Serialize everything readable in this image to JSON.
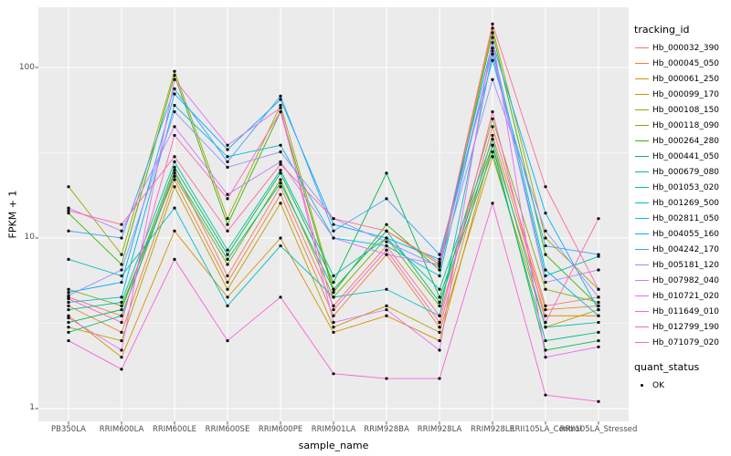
{
  "chart_data": {
    "type": "line",
    "title": "",
    "xlabel": "sample_name",
    "ylabel": "FPKM + 1",
    "y_scale": "log10",
    "y_ticks": [
      1,
      10,
      100
    ],
    "y_tick_labels": [
      "1",
      "10",
      "100"
    ],
    "ylim_log": [
      -0.075,
      2.353
    ],
    "grid": true,
    "legend_position": "right",
    "legend_title": "tracking_id",
    "quant_legend": {
      "title": "quant_status",
      "items": [
        {
          "label": "OK",
          "marker": "point"
        }
      ]
    },
    "panel_bg": "#EBEBEB",
    "grid_color": "#FFFFFF",
    "point_color": "#000000",
    "axis_text_color": "#4D4D4D",
    "categories": [
      "PB350LA",
      "RRIM600LA",
      "RRIM600LE",
      "RRIM600SE",
      "RRIM600PE",
      "RRIM901LA",
      "RRIM928BA",
      "RRIM928LA",
      "RRIM928LE",
      "RRII105LA_Control",
      "RRII105LA_Stressed"
    ],
    "series": [
      {
        "name": "Hb_000032_390",
        "color": "#F8766D",
        "values": [
          4.5,
          3.5,
          25,
          6.0,
          20,
          4.0,
          9.0,
          3.5,
          45,
          4.0,
          4.5
        ]
      },
      {
        "name": "Hb_000045_050",
        "color": "#EA8331",
        "values": [
          4.0,
          2.8,
          22,
          5.5,
          18,
          3.5,
          8.0,
          3.0,
          40,
          3.8,
          4.0
        ]
      },
      {
        "name": "Hb_000061_250",
        "color": "#D89000",
        "values": [
          3.5,
          2.0,
          11,
          4.5,
          10,
          2.8,
          3.5,
          2.5,
          35,
          3.5,
          3.5
        ]
      },
      {
        "name": "Hb_000099_170",
        "color": "#C09B00",
        "values": [
          3.0,
          2.5,
          20,
          5.0,
          16,
          3.0,
          4.0,
          2.8,
          30,
          3.0,
          3.8
        ]
      },
      {
        "name": "Hb_000108_150",
        "color": "#A3A500",
        "values": [
          20,
          8.0,
          95,
          13,
          60,
          5.0,
          11,
          7.0,
          170,
          10,
          5.0
        ]
      },
      {
        "name": "Hb_000118_090",
        "color": "#7CAE00",
        "values": [
          5.0,
          4.0,
          23,
          7.0,
          22,
          4.5,
          10,
          4.0,
          50,
          5.0,
          4.2
        ]
      },
      {
        "name": "Hb_000264_280",
        "color": "#39B600",
        "values": [
          14,
          7.0,
          90,
          12,
          55,
          4.8,
          12,
          6.5,
          160,
          8.0,
          4.0
        ]
      },
      {
        "name": "Hb_000441_050",
        "color": "#00BB4E",
        "values": [
          3.2,
          3.8,
          26,
          8.0,
          24,
          5.5,
          24,
          4.5,
          35,
          2.2,
          2.5
        ]
      },
      {
        "name": "Hb_000679_080",
        "color": "#00BF7D",
        "values": [
          2.8,
          3.5,
          24,
          7.5,
          21,
          5.0,
          11,
          4.2,
          32,
          2.5,
          2.8
        ]
      },
      {
        "name": "Hb_001053_020",
        "color": "#00C1A3",
        "values": [
          3.8,
          4.2,
          28,
          8.5,
          25,
          6.0,
          10,
          5.0,
          38,
          3.0,
          3.2
        ]
      },
      {
        "name": "Hb_001269_500",
        "color": "#00BFC4",
        "values": [
          7.5,
          6.0,
          15,
          4.0,
          9.0,
          4.5,
          5.0,
          3.5,
          120,
          6.0,
          7.8
        ]
      },
      {
        "name": "Hb_002811_050",
        "color": "#00BAE0",
        "values": [
          4.2,
          4.5,
          60,
          30,
          35,
          10,
          9.0,
          6.0,
          130,
          6.5,
          3.5
        ]
      },
      {
        "name": "Hb_004055_160",
        "color": "#00B0F6",
        "values": [
          4.8,
          5.5,
          70,
          33,
          65,
          12,
          10,
          7.5,
          140,
          14,
          3.8
        ]
      },
      {
        "name": "Hb_004242_170",
        "color": "#35A2FF",
        "values": [
          11,
          10,
          75,
          28,
          68,
          11,
          17,
          8.0,
          110,
          9.0,
          8.0
        ]
      },
      {
        "name": "Hb_005181_120",
        "color": "#9590FF",
        "values": [
          4.6,
          6.5,
          55,
          26,
          32,
          13,
          9.5,
          6.8,
          85,
          11,
          4.5
        ]
      },
      {
        "name": "Hb_007982_040",
        "color": "#C77CFF",
        "values": [
          15,
          11,
          45,
          18,
          28,
          10,
          8.0,
          7.0,
          125,
          5.5,
          6.5
        ]
      },
      {
        "name": "Hb_010721_020",
        "color": "#E76BF3",
        "values": [
          3.4,
          2.2,
          85,
          35,
          58,
          3.2,
          3.8,
          2.2,
          150,
          2.0,
          2.3
        ]
      },
      {
        "name": "Hb_011649_010",
        "color": "#FA62DB",
        "values": [
          2.5,
          1.7,
          7.5,
          2.5,
          4.5,
          1.6,
          1.5,
          1.5,
          16,
          1.2,
          1.1
        ]
      },
      {
        "name": "Hb_012799_190",
        "color": "#FF62BC",
        "values": [
          4.4,
          3.2,
          40,
          17,
          55,
          3.8,
          8.5,
          3.2,
          55,
          3.2,
          13
        ]
      },
      {
        "name": "Hb_071079_020",
        "color": "#FF6A98",
        "values": [
          14.5,
          12,
          30,
          11,
          27,
          13,
          11,
          7.2,
          180,
          20,
          5.0
        ]
      }
    ]
  }
}
